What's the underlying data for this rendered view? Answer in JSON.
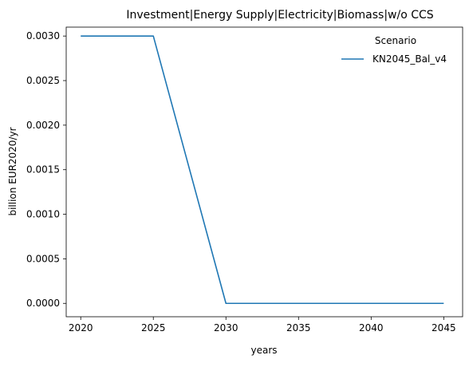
{
  "chart_data": {
    "type": "line",
    "title": "Investment|Energy Supply|Electricity|Biomass|w/o CCS",
    "xlabel": "years",
    "ylabel": "billion EUR2020/yr",
    "x": [
      2020,
      2025,
      2030,
      2035,
      2040,
      2045
    ],
    "xlim": [
      2019,
      2046.3
    ],
    "ylim": [
      -0.00015,
      0.0031
    ],
    "xticks": [
      2020,
      2025,
      2030,
      2035,
      2040,
      2045
    ],
    "xtick_labels": [
      "2020",
      "2025",
      "2030",
      "2035",
      "2040",
      "2045"
    ],
    "yticks": [
      0.0,
      0.0005,
      0.001,
      0.0015,
      0.002,
      0.0025,
      0.003
    ],
    "ytick_labels": [
      "0.0000",
      "0.0005",
      "0.0010",
      "0.0015",
      "0.0020",
      "0.0025",
      "0.0030"
    ],
    "grid": false,
    "legend": {
      "title": "Scenario",
      "placement": "top-right"
    },
    "series": [
      {
        "name": "KN2045_Bal_v4",
        "color": "#1f77b4",
        "values": [
          0.003,
          0.003,
          0.0,
          0.0,
          0.0,
          0.0
        ]
      }
    ]
  }
}
